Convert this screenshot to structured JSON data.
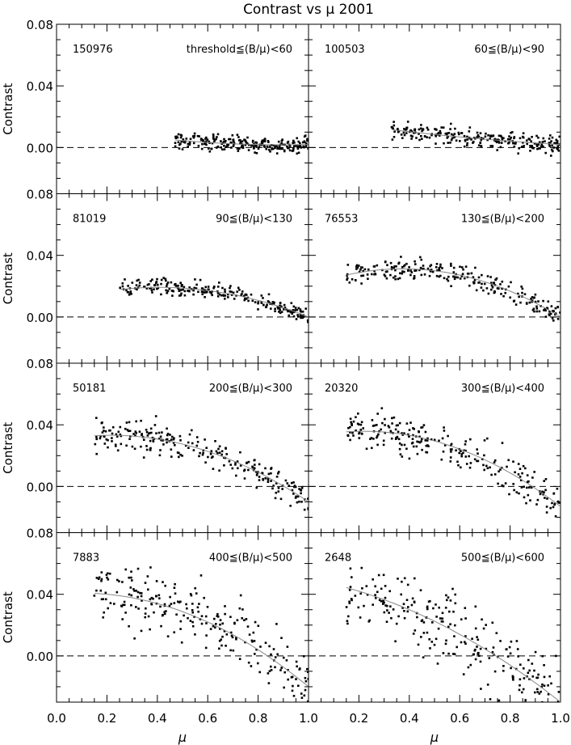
{
  "title": "Contrast vs μ 2001",
  "chart_data": {
    "type": "scatter",
    "title": "Contrast vs μ 2001",
    "xlabel": "μ",
    "ylabel": "Contrast",
    "xlim": [
      0.0,
      1.0
    ],
    "ylim": [
      -0.03,
      0.08
    ],
    "x_ticks": [
      "0.0",
      "0.2",
      "0.4",
      "0.6",
      "0.8",
      "1.0"
    ],
    "y_ticks": [
      "0.00",
      "0.04",
      "0.08"
    ],
    "zero_line": 0.0,
    "panels": [
      {
        "count": "150976",
        "range_label": "threshold≦(B/μ)<60",
        "mu_min": 0.47,
        "fit": [
          0.016,
          -0.032,
          0.018
        ],
        "scatter": 0.0025
      },
      {
        "count": "100503",
        "range_label": "60≦(B/μ)<90",
        "mu_min": 0.33,
        "fit": [
          0.019,
          -0.025,
          0.008
        ],
        "scatter": 0.003
      },
      {
        "count": "81019",
        "range_label": "90≦(B/μ)<130",
        "mu_min": 0.25,
        "fit": [
          0.01,
          0.045,
          -0.055
        ],
        "scatter": 0.0025
      },
      {
        "count": "76553",
        "range_label": "130≦(B/μ)<200",
        "mu_min": 0.15,
        "fit": [
          0.02,
          0.06,
          -0.08
        ],
        "scatter": 0.0035
      },
      {
        "count": "50181",
        "range_label": "200≦(B/μ)<300",
        "mu_min": 0.15,
        "fit": [
          0.03,
          0.03,
          -0.07
        ],
        "scatter": 0.005
      },
      {
        "count": "20320",
        "range_label": "300≦(B/μ)<400",
        "mu_min": 0.15,
        "fit": [
          0.032,
          0.035,
          -0.08
        ],
        "scatter": 0.006
      },
      {
        "count": "7883",
        "range_label": "400≦(B/μ)<500",
        "mu_min": 0.15,
        "fit": [
          0.04,
          0.015,
          -0.075
        ],
        "scatter": 0.01
      },
      {
        "count": "2648",
        "range_label": "500≦(B/μ)<600",
        "mu_min": 0.15,
        "fit": [
          0.05,
          -0.03,
          -0.05
        ],
        "scatter": 0.012
      }
    ]
  }
}
